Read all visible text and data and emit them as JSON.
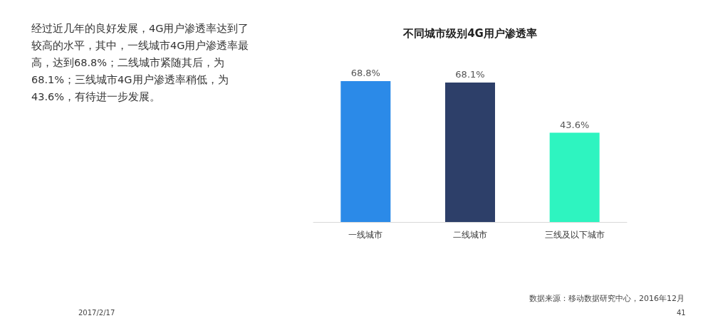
{
  "chart_data": {
    "type": "bar",
    "title": "不同城市级别4G用户渗透率",
    "categories": [
      "一线城市",
      "二线城市",
      "三线及以下城市"
    ],
    "values": [
      68.8,
      68.1,
      43.6
    ],
    "colors": [
      "#2b8ae8",
      "#2d3f69",
      "#2ef4c0"
    ],
    "value_labels": [
      "68.8%",
      "68.1%",
      "43.6%"
    ],
    "annotations": [
      "经过近几年的良好发展，4G用户渗透率达到了较高的水平，其中，一线城市4G用户渗透率最高，达到68.8%；二线城市紧随其后，为68.1%；三线城市4G用户渗透率稍低，为43.6%，有待进一步发展。",
      "数据来源：移动数据研究中心，2016年12月",
      "2017/2/17",
      "41"
    ]
  }
}
